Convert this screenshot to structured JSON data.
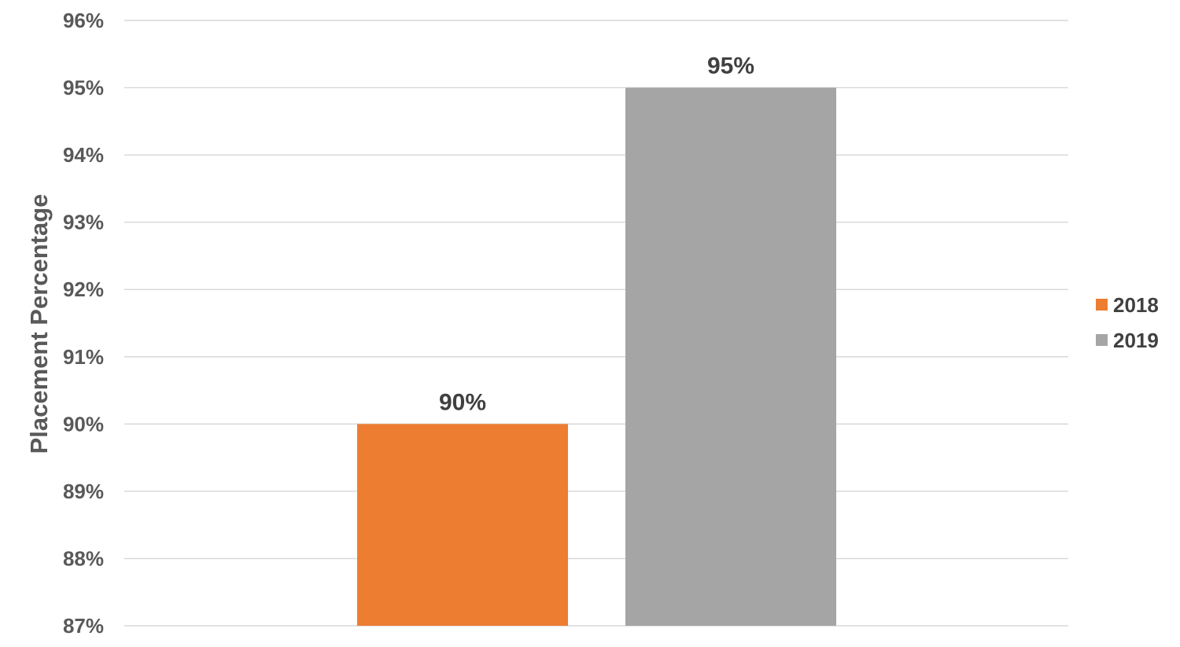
{
  "chart_data": {
    "type": "bar",
    "title": "",
    "xlabel": "",
    "ylabel": "Placement Percentage",
    "ylim": [
      87,
      96
    ],
    "yticks": [
      87,
      88,
      89,
      90,
      91,
      92,
      93,
      94,
      95,
      96
    ],
    "tick_suffix": "%",
    "grid": true,
    "legend": "right",
    "series": [
      {
        "name": "2018",
        "value": 90,
        "label": "90%",
        "color": "#ed7d31"
      },
      {
        "name": "2019",
        "value": 95,
        "label": "95%",
        "color": "#a5a5a5"
      }
    ]
  }
}
